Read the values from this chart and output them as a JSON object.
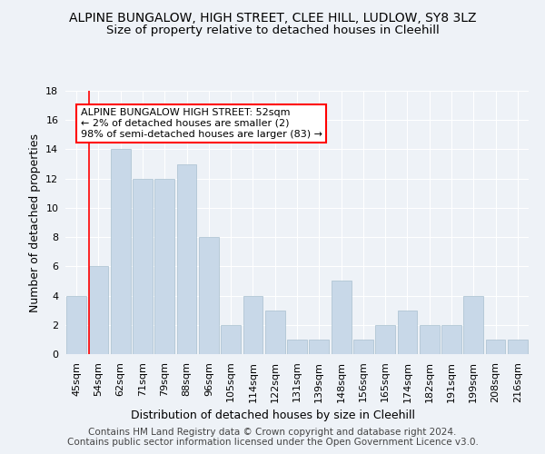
{
  "title": "ALPINE BUNGALOW, HIGH STREET, CLEE HILL, LUDLOW, SY8 3LZ",
  "subtitle": "Size of property relative to detached houses in Cleehill",
  "xlabel": "Distribution of detached houses by size in Cleehill",
  "ylabel": "Number of detached properties",
  "categories": [
    "45sqm",
    "54sqm",
    "62sqm",
    "71sqm",
    "79sqm",
    "88sqm",
    "96sqm",
    "105sqm",
    "114sqm",
    "122sqm",
    "131sqm",
    "139sqm",
    "148sqm",
    "156sqm",
    "165sqm",
    "174sqm",
    "182sqm",
    "191sqm",
    "199sqm",
    "208sqm",
    "216sqm"
  ],
  "values": [
    4,
    6,
    14,
    12,
    12,
    13,
    8,
    2,
    4,
    3,
    1,
    1,
    5,
    1,
    2,
    3,
    2,
    2,
    4,
    1,
    1
  ],
  "bar_color": "#c8d8e8",
  "bar_edge_color": "#a8bfcf",
  "red_line_x": 0.55,
  "annotation_text": "ALPINE BUNGALOW HIGH STREET: 52sqm\n← 2% of detached houses are smaller (2)\n98% of semi-detached houses are larger (83) →",
  "annotation_box_color": "white",
  "annotation_box_edge": "red",
  "ylim": [
    0,
    18
  ],
  "yticks": [
    0,
    2,
    4,
    6,
    8,
    10,
    12,
    14,
    16,
    18
  ],
  "background_color": "#eef2f7",
  "grid_color": "white",
  "footer": "Contains HM Land Registry data © Crown copyright and database right 2024.\nContains public sector information licensed under the Open Government Licence v3.0.",
  "title_fontsize": 10,
  "subtitle_fontsize": 9.5,
  "xlabel_fontsize": 9,
  "ylabel_fontsize": 9,
  "tick_fontsize": 8,
  "annotation_fontsize": 8,
  "footer_fontsize": 7.5
}
